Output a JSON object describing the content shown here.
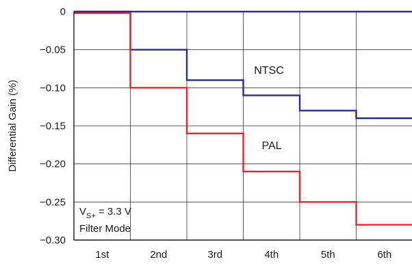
{
  "chart_data": {
    "type": "line",
    "step": true,
    "categories": [
      "1st",
      "2nd",
      "3rd",
      "4th",
      "5th",
      "6th"
    ],
    "ylabel": "Differential Gain (%)",
    "xlabel": "",
    "ylim": [
      -0.3,
      0
    ],
    "yticks": [
      0,
      -0.05,
      -0.1,
      -0.15,
      -0.2,
      -0.25,
      -0.3
    ],
    "ytick_labels": [
      "0",
      "−0.05",
      "−0.10",
      "−0.15",
      "−0.20",
      "−0.25",
      "−0.30"
    ],
    "grid": true,
    "series": [
      {
        "name": "NTSC",
        "color": "#2e2a8c",
        "values": [
          0.0,
          -0.05,
          -0.09,
          -0.11,
          -0.13,
          -0.14
        ]
      },
      {
        "name": "PAL",
        "color": "#e8242e",
        "values": [
          -0.002,
          -0.1,
          -0.16,
          -0.21,
          -0.25,
          -0.28
        ]
      }
    ],
    "annotations": {
      "ntsc": "NTSC",
      "pal": "PAL",
      "condition_v": "V",
      "condition_sub": "S+",
      "condition_value": " = 3.3 V",
      "condition_mode": "Filter Mode"
    }
  }
}
